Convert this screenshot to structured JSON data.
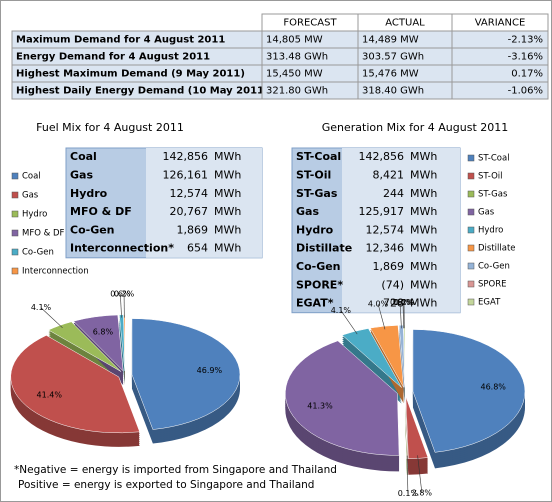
{
  "summary_table": {
    "headers": [
      "FORECAST",
      "ACTUAL",
      "VARIANCE"
    ],
    "rows": [
      [
        "Maximum Demand for 4 August 2011",
        "14,805 MW",
        "14,489 MW",
        "-2.13%"
      ],
      [
        "Energy Demand for 4 August 2011",
        "313.48 GWh",
        "303.57 GWh",
        "-3.16%"
      ],
      [
        "Highest Maximum Demand (9 May 2011)",
        "15,450 MW",
        "15,476 MW",
        "0.17%"
      ],
      [
        "Highest Daily Energy Demand (10 May 2011)",
        "321.80 GWh",
        "318.40 GWh",
        "-1.06%"
      ]
    ]
  },
  "fuel_table": {
    "rows": [
      [
        "Coal",
        "142,856",
        "MWh"
      ],
      [
        "Gas",
        "126,161",
        "MWh"
      ],
      [
        "Hydro",
        "12,574",
        "MWh"
      ],
      [
        "MFO & DF",
        "20,767",
        "MWh"
      ],
      [
        "Co-Gen",
        "1,869",
        "MWh"
      ],
      [
        "Interconnection*",
        "654",
        "MWh"
      ]
    ]
  },
  "generation_table": {
    "rows": [
      [
        "ST-Coal",
        "142,856",
        "MWh"
      ],
      [
        "ST-Oil",
        "8,421",
        "MWh"
      ],
      [
        "ST-Gas",
        "244",
        "MWh"
      ],
      [
        "Gas",
        "125,917",
        "MWh"
      ],
      [
        "Hydro",
        "12,574",
        "MWh"
      ],
      [
        "Distillate",
        "12,346",
        "MWh"
      ],
      [
        "Co-Gen",
        "1,869",
        "MWh"
      ],
      [
        "SPORE*",
        "(74)",
        "MWh"
      ],
      [
        "EGAT*",
        "728",
        "MWh"
      ]
    ]
  },
  "chart_data": [
    {
      "type": "pie",
      "title": "Fuel Mix for 4 August 2011",
      "categories": [
        "Coal",
        "Gas",
        "Hydro",
        "MFO & DF",
        "Co-Gen",
        "Interconnection"
      ],
      "values": [
        46.9,
        41.4,
        4.1,
        6.8,
        0.6,
        0.2
      ],
      "value_labels": [
        "46.9%",
        "41.4%",
        "4.1%",
        "6.8%",
        "0.6%",
        "0.2%"
      ],
      "colors": [
        "#4f81bd",
        "#c0504d",
        "#9bbb59",
        "#8064a2",
        "#4bacc6",
        "#f79646"
      ]
    },
    {
      "type": "pie",
      "title": "Generation Mix for 4 August 2011",
      "categories": [
        "ST-Coal",
        "ST-Oil",
        "ST-Gas",
        "Gas",
        "Hydro",
        "Distillate",
        "Co-Gen",
        "SPORE",
        "EGAT"
      ],
      "values": [
        46.8,
        2.8,
        0.1,
        41.3,
        4.1,
        4.0,
        0.6,
        0.0,
        0.2
      ],
      "value_labels": [
        "46.8%",
        "2.8%",
        "0.1%",
        "41.3%",
        "4.1%",
        "4.0%",
        "0.6%",
        "0.0%",
        "0.2%"
      ],
      "colors": [
        "#4f81bd",
        "#c0504d",
        "#9bbb59",
        "#8064a2",
        "#4bacc6",
        "#f79646",
        "#95b3d7",
        "#d99694",
        "#c3d69b"
      ]
    }
  ],
  "footnote": [
    "*Negative = energy is imported from Singapore and Thailand",
    "Positive = energy is exported to Singapore and Thailand"
  ]
}
